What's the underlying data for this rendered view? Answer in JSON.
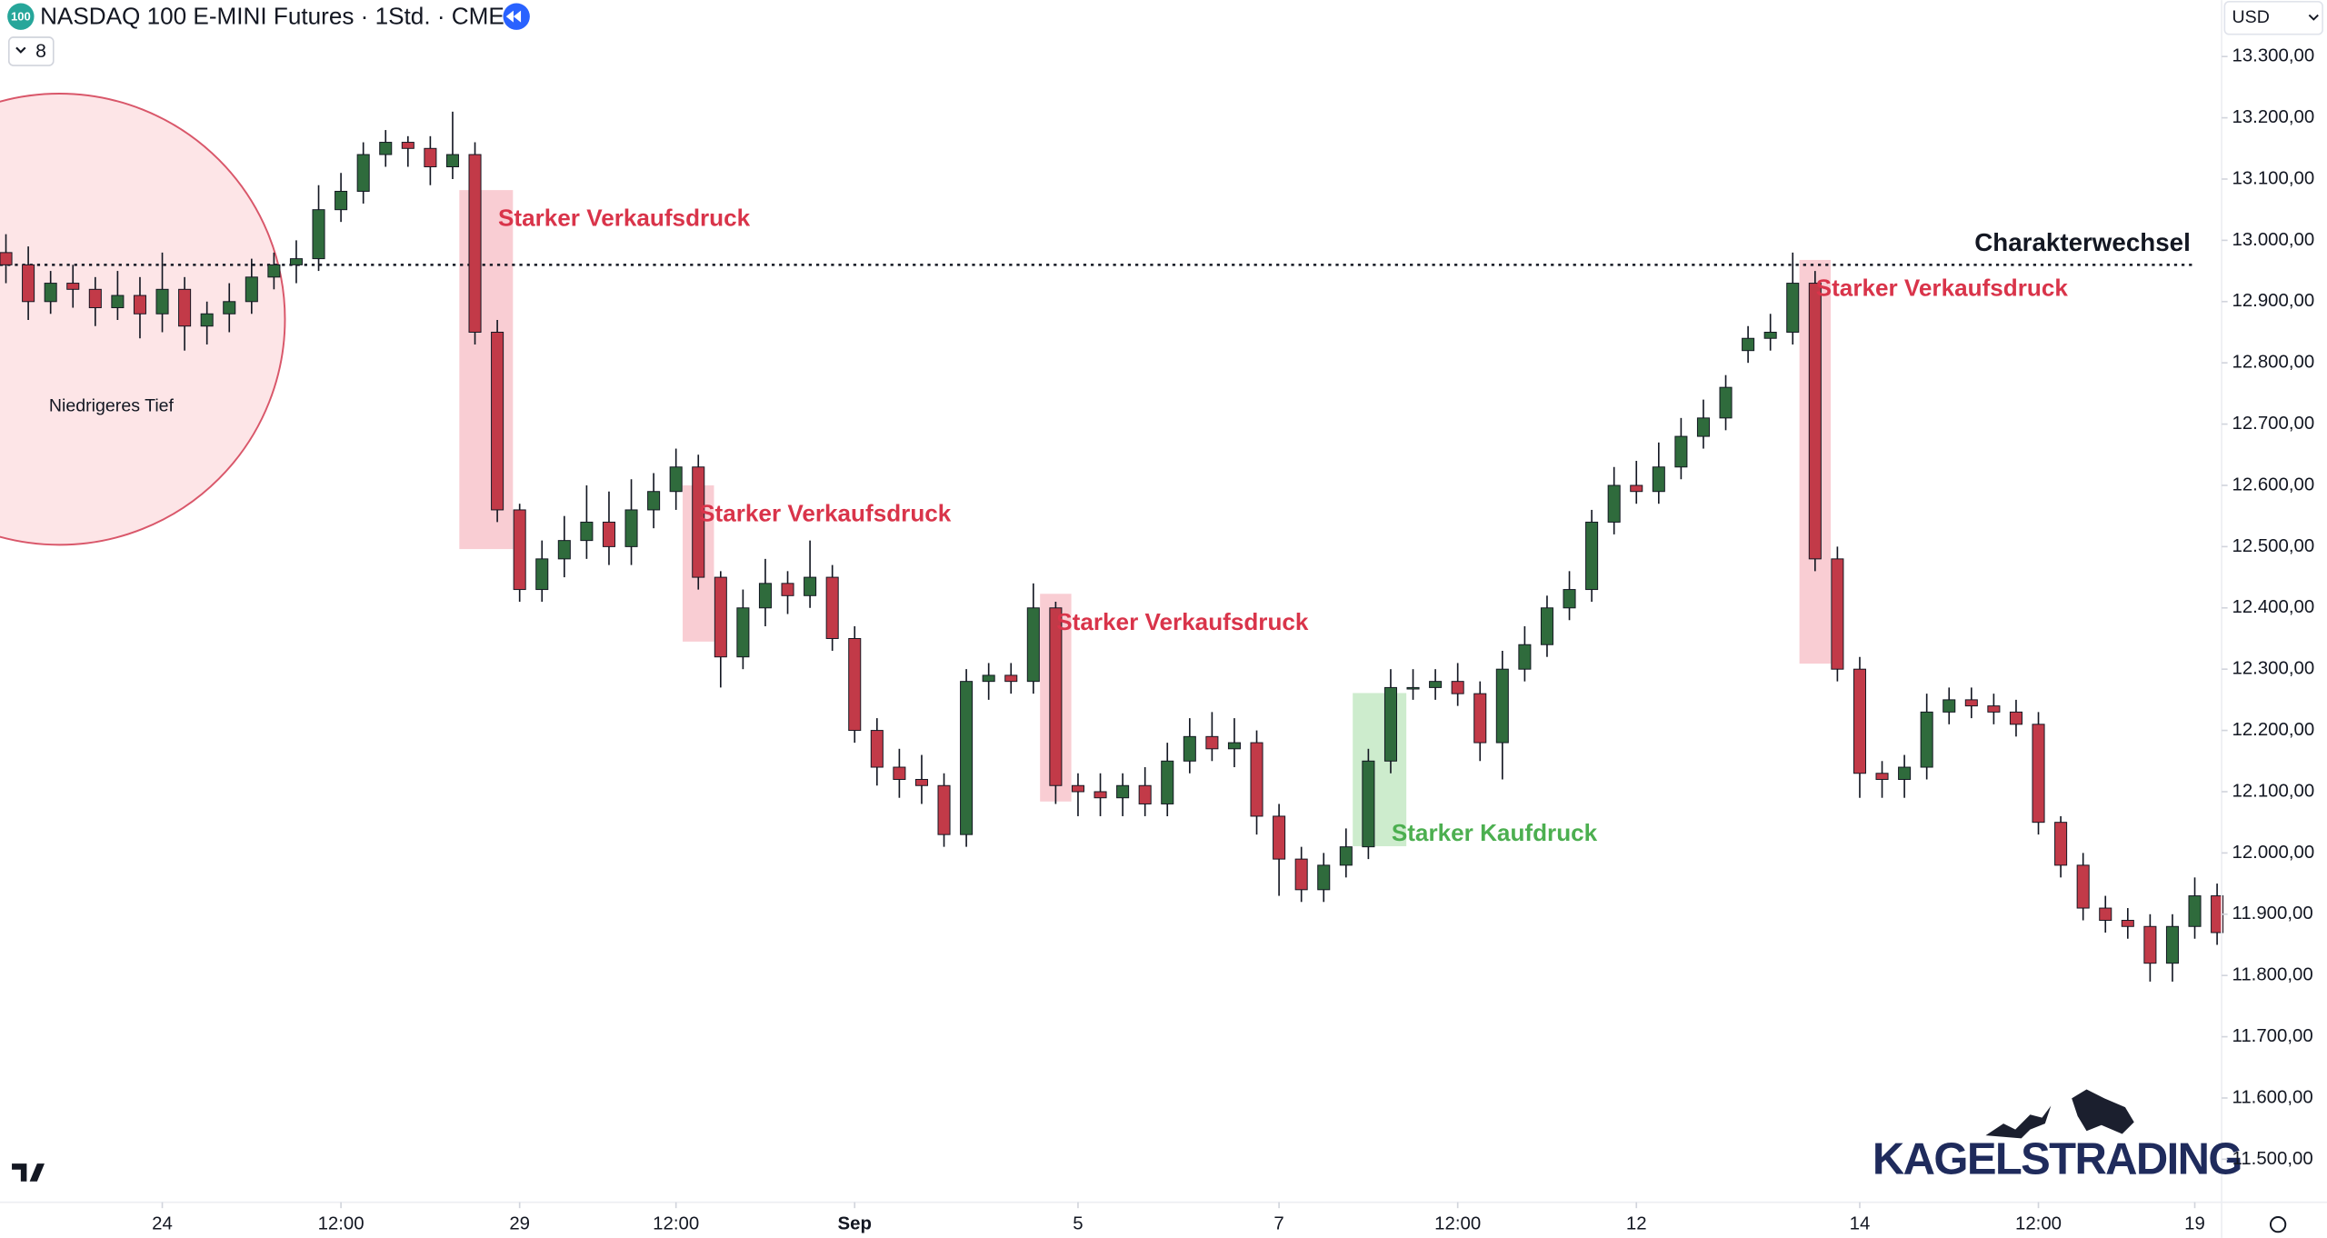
{
  "chart_data": {
    "type": "candlestick",
    "title": "NASDAQ 100 E-MINI Futures · 1Std. · CME",
    "badge": "100",
    "indicator_count": "8",
    "currency": "USD",
    "logo": "KAGELSTRADING",
    "circle_label": "Niedrigeres Tief",
    "up_color": "#2f6b3c",
    "down_color": "#c23a48",
    "open": [
      12980,
      12960,
      12900,
      12930,
      12920,
      12890,
      12910,
      12880,
      12920,
      12860,
      12880,
      12900,
      12940,
      12960,
      12970,
      13050,
      13080,
      13140,
      13160,
      13150,
      13120,
      13140,
      12850,
      12560,
      12430,
      12480,
      12510,
      12540,
      12500,
      12560,
      12590,
      12630,
      12450,
      12320,
      12400,
      12440,
      12420,
      12450,
      12350,
      12200,
      12140,
      12120,
      12110,
      12030,
      12280,
      12290,
      12280,
      12400,
      12110,
      12100,
      12090,
      12110,
      12080,
      12150,
      12190,
      12170,
      12180,
      12060,
      11990,
      11940,
      11980,
      12010,
      12150,
      12270,
      12270,
      12280,
      12260,
      12180,
      12300,
      12340,
      12400,
      12430,
      12540,
      12600,
      12590,
      12630,
      12680,
      12710,
      12820,
      12840,
      12850,
      12930,
      12480,
      12300,
      12130,
      12120,
      12140,
      12230,
      12250,
      12240,
      12230,
      12210,
      12050,
      11980,
      11910,
      11890,
      11880,
      11820,
      11880,
      11930
    ],
    "high": [
      13010,
      12990,
      12950,
      12960,
      12940,
      12950,
      12940,
      12980,
      12940,
      12900,
      12930,
      12970,
      12980,
      13000,
      13090,
      13110,
      13160,
      13180,
      13170,
      13170,
      13210,
      13160,
      12870,
      12570,
      12510,
      12550,
      12600,
      12590,
      12610,
      12620,
      12660,
      12650,
      12460,
      12430,
      12480,
      12460,
      12510,
      12470,
      12370,
      12220,
      12170,
      12160,
      12130,
      12300,
      12310,
      12310,
      12440,
      12410,
      12130,
      12130,
      12130,
      12140,
      12180,
      12220,
      12230,
      12220,
      12200,
      12080,
      12010,
      12000,
      12040,
      12170,
      12300,
      12300,
      12300,
      12310,
      12280,
      12330,
      12370,
      12420,
      12460,
      12560,
      12630,
      12640,
      12670,
      12710,
      12740,
      12780,
      12860,
      12880,
      12980,
      12950,
      12500,
      12320,
      12150,
      12160,
      12260,
      12270,
      12270,
      12260,
      12250,
      12230,
      12060,
      12000,
      11930,
      11910,
      11900,
      11900,
      11960,
      11950
    ],
    "low": [
      12930,
      12870,
      12880,
      12890,
      12860,
      12870,
      12840,
      12850,
      12820,
      12830,
      12850,
      12880,
      12920,
      12930,
      12950,
      13030,
      13060,
      13120,
      13120,
      13090,
      13100,
      12830,
      12540,
      12410,
      12410,
      12450,
      12480,
      12470,
      12470,
      12530,
      12560,
      12430,
      12270,
      12300,
      12370,
      12390,
      12400,
      12330,
      12180,
      12110,
      12090,
      12080,
      12010,
      12010,
      12250,
      12260,
      12260,
      12080,
      12060,
      12060,
      12060,
      12060,
      12060,
      12130,
      12150,
      12140,
      12030,
      11930,
      11920,
      11920,
      11960,
      11990,
      12130,
      12250,
      12250,
      12240,
      12150,
      12120,
      12280,
      12320,
      12380,
      12410,
      12520,
      12570,
      12570,
      12610,
      12660,
      12690,
      12800,
      12820,
      12830,
      12460,
      12280,
      12090,
      12090,
      12090,
      12120,
      12210,
      12220,
      12210,
      12190,
      12030,
      11960,
      11890,
      11870,
      11860,
      11790,
      11790,
      11860,
      11850
    ],
    "close": [
      12960,
      12900,
      12930,
      12920,
      12890,
      12910,
      12880,
      12920,
      12860,
      12880,
      12900,
      12940,
      12960,
      12970,
      13050,
      13080,
      13140,
      13160,
      13150,
      13120,
      13140,
      12850,
      12560,
      12430,
      12480,
      12510,
      12540,
      12500,
      12560,
      12590,
      12630,
      12450,
      12320,
      12400,
      12440,
      12420,
      12450,
      12350,
      12200,
      12140,
      12120,
      12110,
      12030,
      12280,
      12290,
      12280,
      12400,
      12110,
      12100,
      12090,
      12110,
      12080,
      12150,
      12190,
      12170,
      12180,
      12060,
      11990,
      11940,
      11980,
      12010,
      12150,
      12270,
      12270,
      12280,
      12260,
      12180,
      12300,
      12340,
      12400,
      12430,
      12540,
      12600,
      12590,
      12630,
      12680,
      12710,
      12760,
      12840,
      12850,
      12930,
      12480,
      12300,
      12130,
      12120,
      12140,
      12230,
      12250,
      12240,
      12230,
      12210,
      12050,
      11980,
      11910,
      11890,
      11880,
      11820,
      11880,
      11930,
      11870
    ],
    "ylim": [
      11442,
      13392
    ],
    "yticks": [
      {
        "value": 13300,
        "label": "13.300,00"
      },
      {
        "value": 13200,
        "label": "13.200,00"
      },
      {
        "value": 13100,
        "label": "13.100,00"
      },
      {
        "value": 13000,
        "label": "13.000,00"
      },
      {
        "value": 12900,
        "label": "12.900,00"
      },
      {
        "value": 12800,
        "label": "12.800,00"
      },
      {
        "value": 12700,
        "label": "12.700,00"
      },
      {
        "value": 12600,
        "label": "12.600,00"
      },
      {
        "value": 12500,
        "label": "12.500,00"
      },
      {
        "value": 12400,
        "label": "12.400,00"
      },
      {
        "value": 12300,
        "label": "12.300,00"
      },
      {
        "value": 12200,
        "label": "12.200,00"
      },
      {
        "value": 12100,
        "label": "12.100,00"
      },
      {
        "value": 12000,
        "label": "12.000,00"
      },
      {
        "value": 11900,
        "label": "11.900,00"
      },
      {
        "value": 11800,
        "label": "11.800,00"
      },
      {
        "value": 11700,
        "label": "11.700,00"
      },
      {
        "value": 11600,
        "label": "11.600,00"
      },
      {
        "value": 11500,
        "label": "11.500,00"
      }
    ],
    "xticks": [
      {
        "value": 7,
        "label": "24"
      },
      {
        "value": 15,
        "label": "12:00"
      },
      {
        "value": 23,
        "label": "29"
      },
      {
        "value": 30,
        "label": "12:00"
      },
      {
        "value": 38,
        "label": "Sep"
      },
      {
        "value": 48,
        "label": "5"
      },
      {
        "value": 57,
        "label": "7"
      },
      {
        "value": 65,
        "label": "12:00"
      },
      {
        "value": 73,
        "label": "12"
      },
      {
        "value": 83,
        "label": "14"
      },
      {
        "value": 91,
        "label": "12:00"
      },
      {
        "value": 98,
        "label": "19"
      }
    ],
    "grid": false,
    "level": {
      "value": 12960,
      "label": "Charakterwechsel"
    },
    "zones": [
      {
        "label": "Starker Verkaufsdruck",
        "from": 21,
        "to": 22,
        "top": 13082,
        "bottom": 12496,
        "color": "#f9cdd3",
        "label_color": "#d9344a"
      },
      {
        "label": "Starker Verkaufsdruck",
        "from": 31,
        "to": 31,
        "top": 12600,
        "bottom": 12345,
        "color": "#f9cdd3",
        "label_color": "#d9344a"
      },
      {
        "label": "Starker Verkaufsdruck",
        "from": 47,
        "to": 47,
        "top": 12423,
        "bottom": 12084,
        "color": "#f9cdd3",
        "label_color": "#d9344a"
      },
      {
        "label": "Starker Kaufdruck",
        "from": 61,
        "to": 62,
        "top": 12261,
        "bottom": 12011,
        "color": "#cdeccd",
        "label_color": "#4caf50"
      },
      {
        "label": "Starker Verkaufsdruck",
        "from": 81,
        "to": 81,
        "top": 12968,
        "bottom": 12309,
        "color": "#f9cdd3",
        "label_color": "#d9344a"
      }
    ]
  }
}
